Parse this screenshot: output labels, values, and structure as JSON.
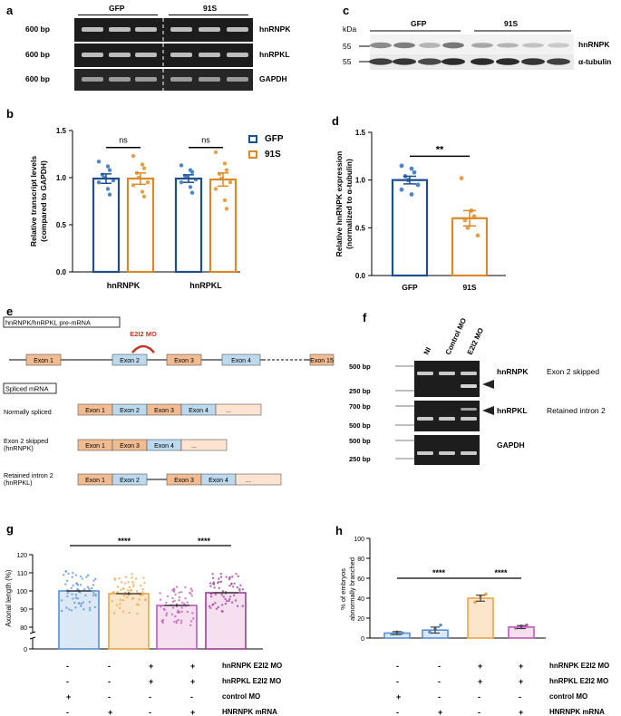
{
  "colors": {
    "gfp": "#1f4e8c",
    "s91": "#d88a2b",
    "gfp_dot": "#4a86c8",
    "s91_dot": "#e6a046",
    "blue": "#5b8fd0",
    "orange": "#e8a54b",
    "purple": "#9b3f94",
    "violet": "#b95bb5",
    "exon_orange": "#f2bc93",
    "exon_blue": "#bcd9ee",
    "exon_pink": "#fde3d0",
    "mo_red": "#c0392b"
  },
  "panel_a": {
    "letter": "a",
    "groups": [
      "GFP",
      "91S"
    ],
    "rows": [
      {
        "size": "600 bp",
        "gene": "hnRNPK"
      },
      {
        "size": "600 bp",
        "gene": "hnRPKL"
      },
      {
        "size": "600 bp",
        "gene": "GAPDH"
      }
    ]
  },
  "panel_c": {
    "letter": "c",
    "kda": "kDa",
    "groups": [
      "GFP",
      "91S"
    ],
    "rows": [
      {
        "size": "55",
        "protein": "hnRNPK"
      },
      {
        "size": "55",
        "protein": "α-tubulin"
      }
    ]
  },
  "panel_b": {
    "letter": "b",
    "legend": [
      "GFP",
      "91S"
    ],
    "chart_data": {
      "type": "bar",
      "ylabel": "Relative transcript levels (compared to GAPDH)",
      "ylabel_lines": [
        "Relative transcript levels",
        "(compared to GAPDH)"
      ],
      "categories": [
        "hnRNPK",
        "hnRPKL"
      ],
      "ylim": [
        0,
        1.5
      ],
      "yticks": [
        "0.0",
        "0.5",
        "1.0",
        "1.5"
      ],
      "series": [
        {
          "name": "GFP",
          "values": [
            0.99,
            0.99
          ],
          "sem": [
            0.05,
            0.04
          ]
        },
        {
          "name": "91S",
          "values": [
            0.99,
            0.98
          ],
          "sem": [
            0.06,
            0.07
          ]
        }
      ],
      "points": {
        "hnRNPK_GFP": [
          1.17,
          1.12,
          1.08,
          1.03,
          1.0,
          0.97,
          0.95,
          0.88,
          0.82
        ],
        "hnRNPK_91S": [
          1.23,
          1.14,
          1.1,
          1.05,
          1.0,
          0.95,
          0.92,
          0.85,
          0.8
        ],
        "hnRPKL_GFP": [
          1.13,
          1.08,
          1.06,
          1.02,
          1.0,
          0.98,
          0.95,
          0.9,
          0.84
        ],
        "hnRPKL_91S": [
          1.27,
          1.15,
          1.08,
          1.04,
          0.99,
          0.95,
          0.88,
          0.76,
          0.67
        ]
      },
      "annotations": [
        "ns",
        "ns"
      ]
    }
  },
  "panel_d": {
    "letter": "d",
    "chart_data": {
      "type": "bar",
      "ylabel": "Relative hnRNPK expression (normalized to α-tubulin)",
      "ylabel_lines": [
        "Relative hnRNPK expression",
        "(normalized to α-tubulin)"
      ],
      "categories": [
        "GFP",
        "91S"
      ],
      "ylim": [
        0,
        1.5
      ],
      "yticks": [
        "0.0",
        "0.5",
        "1.0",
        "1.5"
      ],
      "values": [
        1.0,
        0.6
      ],
      "sem": [
        0.04,
        0.08
      ],
      "points": {
        "GFP": [
          1.15,
          1.12,
          1.08,
          1.04,
          1.0,
          0.95,
          0.9,
          0.85
        ],
        "91S": [
          1.02,
          0.68,
          0.62,
          0.58,
          0.5,
          0.42
        ]
      },
      "annotation": "**"
    }
  },
  "panel_e": {
    "letter": "e",
    "premrna_label": "hnRNPK/hnRPKL pre-mRNA",
    "mo_label": "E2I2 MO",
    "pre_exons": [
      "Exon 1",
      "Exon 2",
      "Exon 3",
      "Exon 4",
      "Exon 15"
    ],
    "spliced_label": "Spliced mRNA",
    "rows": [
      {
        "label": [
          "Normally spliced"
        ],
        "exons": [
          "Exon 1",
          "Exon 2",
          "Exon 3",
          "Exon 4",
          "..."
        ]
      },
      {
        "label": [
          "Exon 2 skipped",
          "(hnRNPK)"
        ],
        "exons": [
          "Exon 1",
          "Exon 3",
          "Exon 4",
          "..."
        ]
      },
      {
        "label": [
          "Retained intron 2",
          "(hnRPKL)"
        ],
        "exons": [
          "Exon 1",
          "Exon 2",
          "Exon 3",
          "Exon 4",
          "..."
        ]
      }
    ]
  },
  "panel_f": {
    "letter": "f",
    "lanes": [
      "NI",
      "Control MO",
      "E2I2 MO"
    ],
    "gels": [
      {
        "sizes": [
          "500 bp",
          "250 bp"
        ],
        "gene": "hnRNPK",
        "note": "Exon 2 skipped"
      },
      {
        "sizes": [
          "700 bp",
          "500 bp"
        ],
        "gene": "hnRPKL",
        "note": "Retained intron 2"
      },
      {
        "sizes": [
          "500 bp",
          "250 bp"
        ],
        "gene": "GAPDH",
        "note": ""
      }
    ]
  },
  "panel_g": {
    "letter": "g",
    "chart_data": {
      "type": "bar",
      "ylabel": "Axonal length (%)",
      "ylim": [
        0,
        120
      ],
      "yticks": [
        "0",
        "80",
        "90",
        "100",
        "110",
        "120"
      ],
      "values": [
        100,
        98.5,
        92,
        99
      ],
      "sem": [
        0.8,
        0.9,
        1.0,
        0.9
      ],
      "annotations": [
        "****",
        "****"
      ]
    }
  },
  "panel_h": {
    "letter": "h",
    "chart_data": {
      "type": "bar",
      "ylabel": "% of embryos abnormally branched",
      "ylabel_lines": [
        "% of embryos",
        "abnormally branched"
      ],
      "ylim": [
        0,
        100
      ],
      "yticks": [
        "0",
        "20",
        "40",
        "60",
        "80",
        "100"
      ],
      "values": [
        5,
        8,
        40,
        11
      ],
      "sem": [
        1.5,
        3,
        3,
        1.5
      ],
      "points": [
        [
          4,
          6,
          5
        ],
        [
          6,
          9,
          13
        ],
        [
          36,
          42,
          44
        ],
        [
          10,
          12,
          13
        ]
      ],
      "annotations": [
        "****",
        "****"
      ]
    }
  },
  "conditions": {
    "rows": [
      "hnRNPK E2I2 MO",
      "hnRPKL E2I2 MO",
      "control MO",
      "HNRNPK mRNA"
    ],
    "g": [
      [
        "-",
        "-",
        "+",
        "+"
      ],
      [
        "-",
        "-",
        "+",
        "+"
      ],
      [
        "+",
        "-",
        "-",
        "-"
      ],
      [
        "-",
        "+",
        "-",
        "+"
      ]
    ],
    "h": [
      [
        "-",
        "-",
        "+",
        "+"
      ],
      [
        "-",
        "-",
        "+",
        "+"
      ],
      [
        "+",
        "-",
        "-",
        "-"
      ],
      [
        "-",
        "+",
        "-",
        "+"
      ]
    ]
  }
}
